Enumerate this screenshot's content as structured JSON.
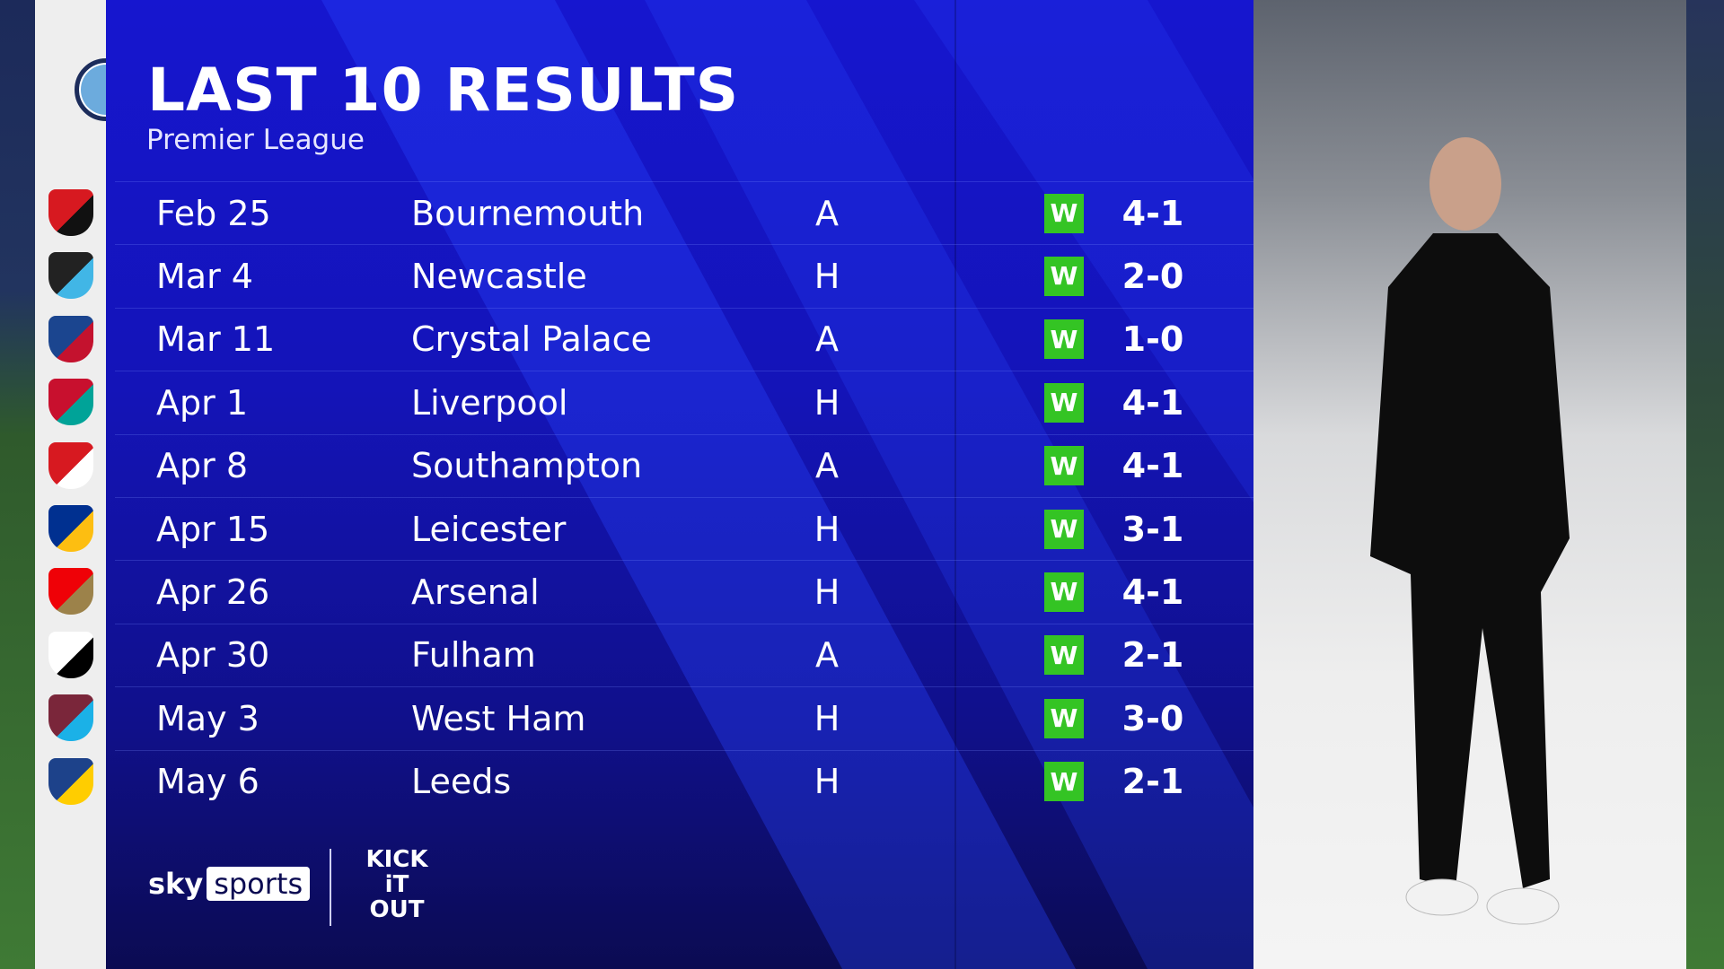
{
  "header": {
    "title": "LAST 10 RESULTS",
    "subtitle": "Premier League"
  },
  "team_crest": "manchester-city-crest",
  "colors": {
    "panel": "#1414b8",
    "win_badge": "#34c424",
    "text": "#ffffff"
  },
  "results": [
    {
      "date": "Feb 25",
      "opponent": "Bournemouth",
      "venue": "A",
      "result": "W",
      "score": "4-1",
      "crest": "bournemouth-crest",
      "c1": "#d71920",
      "c2": "#111111"
    },
    {
      "date": "Mar 4",
      "opponent": "Newcastle",
      "venue": "H",
      "result": "W",
      "score": "2-0",
      "crest": "newcastle-crest",
      "c1": "#222222",
      "c2": "#41b6e6"
    },
    {
      "date": "Mar 11",
      "opponent": "Crystal Palace",
      "venue": "A",
      "result": "W",
      "score": "1-0",
      "crest": "crystal-palace-crest",
      "c1": "#1b458f",
      "c2": "#c4122e"
    },
    {
      "date": "Apr 1",
      "opponent": "Liverpool",
      "venue": "H",
      "result": "W",
      "score": "4-1",
      "crest": "liverpool-crest",
      "c1": "#c8102e",
      "c2": "#00a398"
    },
    {
      "date": "Apr 8",
      "opponent": "Southampton",
      "venue": "A",
      "result": "W",
      "score": "4-1",
      "crest": "southampton-crest",
      "c1": "#d71920",
      "c2": "#ffffff"
    },
    {
      "date": "Apr 15",
      "opponent": "Leicester",
      "venue": "H",
      "result": "W",
      "score": "3-1",
      "crest": "leicester-crest",
      "c1": "#003090",
      "c2": "#fdbe11"
    },
    {
      "date": "Apr 26",
      "opponent": "Arsenal",
      "venue": "H",
      "result": "W",
      "score": "4-1",
      "crest": "arsenal-crest",
      "c1": "#ef0107",
      "c2": "#9c824a"
    },
    {
      "date": "Apr 30",
      "opponent": "Fulham",
      "venue": "A",
      "result": "W",
      "score": "2-1",
      "crest": "fulham-crest",
      "c1": "#ffffff",
      "c2": "#000000"
    },
    {
      "date": "May 3",
      "opponent": "West Ham",
      "venue": "H",
      "result": "W",
      "score": "3-0",
      "crest": "west-ham-crest",
      "c1": "#7a263a",
      "c2": "#1bb1e7"
    },
    {
      "date": "May 6",
      "opponent": "Leeds",
      "venue": "H",
      "result": "W",
      "score": "2-1",
      "crest": "leeds-crest",
      "c1": "#1d428a",
      "c2": "#ffcd00"
    }
  ],
  "footer": {
    "sky": "sky",
    "sports": "sports",
    "kick_it_out": "KICK IT OUT"
  }
}
